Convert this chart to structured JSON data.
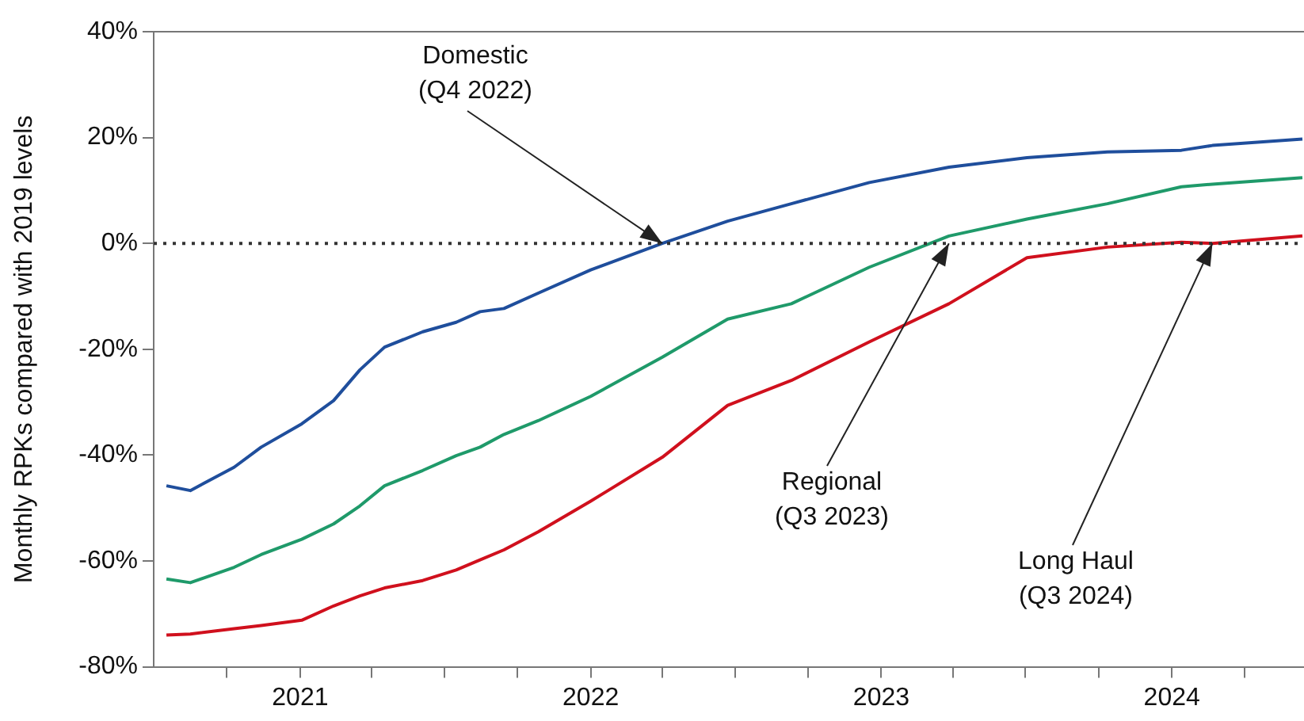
{
  "chart_data": {
    "type": "line",
    "ylabel": "Monthly RPKs compared with 2019 levels",
    "x": [
      "2020-07-17",
      "2020-08-16",
      "2020-10-10",
      "2020-11-13",
      "2021-01-03",
      "2021-02-12",
      "2021-03-17",
      "2021-04-17",
      "2021-06-04",
      "2021-07-16",
      "2021-08-15",
      "2021-09-14",
      "2021-10-27",
      "2022-01-01",
      "2022-04-01",
      "2022-06-22",
      "2022-09-10",
      "2022-12-17",
      "2023-03-27",
      "2023-07-03",
      "2023-10-12",
      "2024-01-13",
      "2024-02-21",
      "2024-06-13"
    ],
    "series": [
      {
        "color": "#1f4e9c",
        "values": [
          -45.8,
          -46.7,
          -42.3,
          -38.5,
          -34.1,
          -29.7,
          -23.9,
          -19.6,
          -16.7,
          -14.9,
          -12.9,
          -12.3,
          -9.4,
          -5.0,
          0,
          4.2,
          7.5,
          11.5,
          14.4,
          16.2,
          17.3,
          17.6,
          18.5,
          19.7
        ]
      },
      {
        "color": "#1f9a6a",
        "values": [
          -63.4,
          -64.1,
          -61.2,
          -58.8,
          -55.9,
          -53.0,
          -49.6,
          -45.8,
          -42.9,
          -40.1,
          -38.5,
          -36.1,
          -33.5,
          -28.9,
          -21.5,
          -14.3,
          -11.4,
          -4.5,
          1.4,
          4.6,
          7.5,
          10.7,
          11.2,
          12.4
        ]
      },
      {
        "color": "#d0101d",
        "values": [
          -74.0,
          -73.8,
          -72.8,
          -72.2,
          -71.2,
          -68.5,
          -66.6,
          -65.1,
          -63.7,
          -61.7,
          -59.8,
          -57.9,
          -54.5,
          -48.7,
          -40.4,
          -30.6,
          -25.9,
          -18.6,
          -11.4,
          -2.7,
          -0.7,
          0.2,
          0,
          1.4
        ]
      }
    ],
    "xlim": [
      "2020-07-01",
      "2024-06-15"
    ],
    "xticks": [
      {
        "value": "2020-10-01",
        "label": null
      },
      {
        "value": "2021-01-01",
        "label": "2021"
      },
      {
        "value": "2021-04-01",
        "label": null
      },
      {
        "value": "2021-07-01",
        "label": null
      },
      {
        "value": "2021-10-01",
        "label": null
      },
      {
        "value": "2022-01-01",
        "label": "2022"
      },
      {
        "value": "2022-04-01",
        "label": null
      },
      {
        "value": "2022-07-01",
        "label": null
      },
      {
        "value": "2022-10-01",
        "label": null
      },
      {
        "value": "2023-01-01",
        "label": "2023"
      },
      {
        "value": "2023-04-01",
        "label": null
      },
      {
        "value": "2023-07-01",
        "label": null
      },
      {
        "value": "2023-10-01",
        "label": null
      },
      {
        "value": "2024-01-01",
        "label": "2024"
      },
      {
        "value": "2024-04-01",
        "label": null
      }
    ],
    "ylim": [
      -80,
      40
    ],
    "yticks": [
      {
        "value": -80,
        "label": "-80%"
      },
      {
        "value": -60,
        "label": "-60%"
      },
      {
        "value": -40,
        "label": "-40%"
      },
      {
        "value": -20,
        "label": "-20%"
      },
      {
        "value": 0,
        "label": "0%"
      },
      {
        "value": 20,
        "label": "20%"
      },
      {
        "value": 40,
        "label": "40%"
      }
    ],
    "ref_lines": [
      {
        "axis": "y",
        "value": 0,
        "line_style": "dotted",
        "color": "#333333"
      }
    ],
    "annotations": [
      {
        "text": "Domestic\n(Q4 2022)",
        "x": "2022-04-01",
        "y": 0
      },
      {
        "text": "Regional\n(Q3 2023)",
        "x": "2023-03-27",
        "y": 0
      },
      {
        "text": "Long Haul\n(Q3 2024)",
        "x": "2024-02-21",
        "y": 0
      }
    ],
    "grid": false,
    "legend": false,
    "marker": "none",
    "line_style": "solid"
  }
}
